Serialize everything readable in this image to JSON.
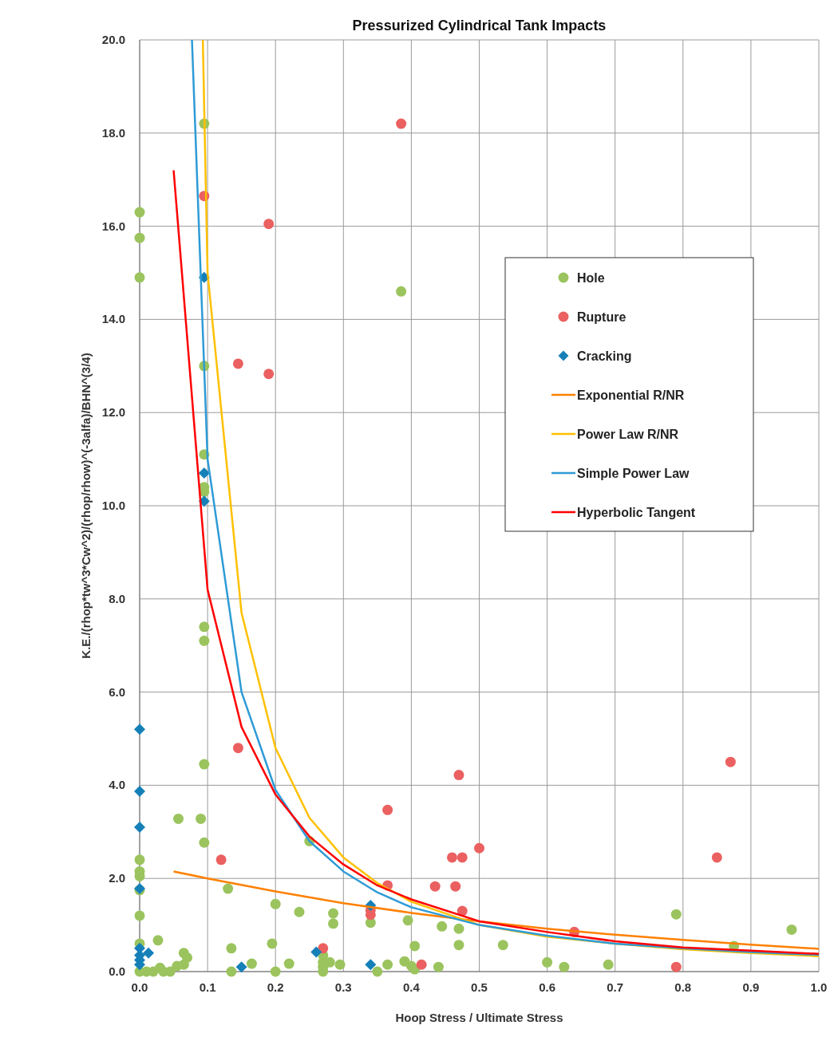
{
  "chart_data": {
    "type": "scatter",
    "title": "Pressurized Cylindrical Tank Impacts",
    "xlabel": "Hoop Stress / Ultimate Stress",
    "ylabel": "K.E./(rhop*tw^3*Cw^2)/(rhop/rhow)^(-3alfa)/BHN^(3/4)",
    "xlim": [
      0,
      1
    ],
    "ylim": [
      0,
      20
    ],
    "xticks": [
      {
        "value": 0,
        "label": "0.0"
      },
      {
        "value": 0.1,
        "label": "0.1"
      },
      {
        "value": 0.2,
        "label": "0.2"
      },
      {
        "value": 0.3,
        "label": "0.3"
      },
      {
        "value": 0.4,
        "label": "0.4"
      },
      {
        "value": 0.5,
        "label": "0.5"
      },
      {
        "value": 0.6,
        "label": "0.6"
      },
      {
        "value": 0.7,
        "label": "0.7"
      },
      {
        "value": 0.8,
        "label": "0.8"
      },
      {
        "value": 0.9,
        "label": "0.9"
      },
      {
        "value": 1,
        "label": "1.0"
      }
    ],
    "yticks": [
      {
        "value": 0,
        "label": "0.0"
      },
      {
        "value": 2,
        "label": "2.0"
      },
      {
        "value": 4,
        "label": "4.0"
      },
      {
        "value": 6,
        "label": "6.0"
      },
      {
        "value": 8,
        "label": "8.0"
      },
      {
        "value": 10,
        "label": "10.0"
      },
      {
        "value": 12,
        "label": "12.0"
      },
      {
        "value": 14,
        "label": "14.0"
      },
      {
        "value": 16,
        "label": "16.0"
      },
      {
        "value": 18,
        "label": "18.0"
      },
      {
        "value": 20,
        "label": "20.0"
      }
    ],
    "grid": true,
    "legend": "right",
    "series": [
      {
        "name": "Hole",
        "marker": "circle",
        "color": "#9bc45e",
        "x": [
          0,
          0,
          0,
          0.095,
          0.385,
          0.095,
          0.095,
          0.095,
          0.095,
          0.095,
          0.095,
          0.095,
          0.095,
          0.09,
          0.057,
          0,
          0,
          0,
          0,
          0,
          0,
          0.13,
          0.2,
          0.235,
          0.285,
          0.285,
          0.25,
          0.34,
          0.395,
          0.405,
          0.445,
          0.47,
          0.47,
          0.535,
          0.6,
          0.625,
          0.69,
          0.79,
          0.875,
          0.96,
          0.027,
          0.135,
          0.195,
          0.2,
          0.135,
          0.165,
          0.22,
          0.27,
          0.27,
          0.27,
          0.27,
          0.28,
          0.295,
          0.35,
          0.365,
          0.39,
          0.4,
          0.405,
          0.44,
          0.065,
          0.07,
          0.065,
          0.055,
          0.045,
          0.03,
          0.02,
          0.01,
          0,
          0.035
        ],
        "values": [
          16.3,
          15.75,
          14.9,
          18.2,
          14.6,
          13.0,
          11.1,
          10.4,
          10.3,
          7.4,
          7.1,
          4.45,
          2.77,
          3.28,
          3.28,
          2.4,
          2.15,
          2.05,
          1.75,
          1.2,
          0.6,
          1.78,
          1.45,
          1.28,
          1.25,
          1.03,
          2.8,
          1.05,
          1.1,
          0.55,
          0.97,
          0.92,
          0.57,
          0.57,
          0.2,
          0.1,
          0.15,
          1.23,
          0.55,
          0.9,
          0.67,
          0.5,
          0.6,
          0,
          0,
          0.17,
          0.17,
          0.35,
          0.2,
          0.1,
          0,
          0.2,
          0.15,
          0,
          0.15,
          0.22,
          0.12,
          0.05,
          0.1,
          0.4,
          0.3,
          0.15,
          0.12,
          0,
          0.08,
          0,
          0,
          0,
          0
        ]
      },
      {
        "name": "Rupture",
        "marker": "circle",
        "color": "#eb6060",
        "x": [
          0.095,
          0.385,
          0.19,
          0.145,
          0.19,
          0.145,
          0.12,
          0.365,
          0.47,
          0.87,
          0.46,
          0.475,
          0.5,
          0.85,
          0.365,
          0.435,
          0.465,
          0.34,
          0.34,
          0.475,
          0.27,
          0.415,
          0.64,
          0.79
        ],
        "values": [
          16.65,
          18.2,
          16.05,
          13.05,
          12.83,
          4.8,
          2.4,
          3.47,
          4.22,
          4.5,
          2.45,
          2.45,
          2.65,
          2.45,
          1.85,
          1.83,
          1.83,
          1.22,
          1.32,
          1.3,
          0.5,
          0.15,
          0.85,
          0.1
        ]
      },
      {
        "name": "Cracking",
        "marker": "diamond",
        "color": "#1580b8",
        "x": [
          0,
          0,
          0,
          0,
          0.095,
          0.095,
          0.095,
          0.34,
          0.34,
          0.15,
          0.26,
          0.013,
          0,
          0,
          0,
          0
        ],
        "values": [
          5.2,
          3.87,
          3.1,
          1.78,
          14.9,
          10.7,
          10.1,
          1.42,
          0.15,
          0.1,
          0.42,
          0.4,
          0.5,
          0.35,
          0.25,
          0.15
        ]
      },
      {
        "name": "Exponential R/NR",
        "type": "line",
        "marker": "none",
        "color": "#ff8000",
        "x": [
          0.05,
          0.1,
          0.2,
          0.3,
          0.4,
          0.5,
          0.6,
          0.7,
          0.8,
          0.9,
          1.0
        ],
        "values": [
          2.15,
          2.0,
          1.72,
          1.47,
          1.26,
          1.08,
          0.92,
          0.79,
          0.68,
          0.58,
          0.49
        ]
      },
      {
        "name": "Power Law R/NR",
        "type": "line",
        "marker": "none",
        "color": "#ffc000",
        "x": [
          0.093,
          0.1,
          0.15,
          0.2,
          0.25,
          0.3,
          0.35,
          0.4,
          0.5,
          0.6,
          0.7,
          0.8,
          0.9,
          1.0
        ],
        "values": [
          20,
          15,
          7.7,
          4.8,
          3.3,
          2.45,
          1.9,
          1.5,
          1.0,
          0.75,
          0.6,
          0.48,
          0.4,
          0.33
        ]
      },
      {
        "name": "Simple Power Law",
        "type": "line",
        "marker": "none",
        "color": "#2e9bd6",
        "x": [
          0.077,
          0.1,
          0.15,
          0.2,
          0.25,
          0.3,
          0.35,
          0.4,
          0.5,
          0.6,
          0.7,
          0.8,
          0.9,
          1.0
        ],
        "values": [
          20,
          11,
          6.0,
          3.9,
          2.8,
          2.15,
          1.7,
          1.38,
          1.0,
          0.77,
          0.6,
          0.5,
          0.42,
          0.36
        ]
      },
      {
        "name": "Hyperbolic Tangent",
        "type": "line",
        "marker": "none",
        "color": "#ff0000",
        "x": [
          0.05,
          0.1,
          0.15,
          0.2,
          0.25,
          0.3,
          0.35,
          0.4,
          0.5,
          0.6,
          0.7,
          0.8,
          0.9,
          1.0
        ],
        "values": [
          17.2,
          8.2,
          5.25,
          3.8,
          2.9,
          2.3,
          1.85,
          1.55,
          1.08,
          0.85,
          0.65,
          0.52,
          0.45,
          0.38
        ]
      }
    ]
  }
}
